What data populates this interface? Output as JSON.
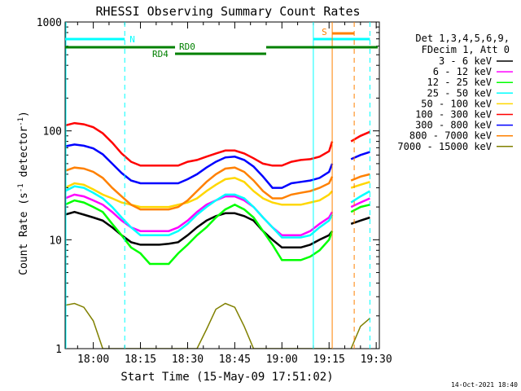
{
  "chart_data": {
    "type": "line",
    "title": "RHESSI Observing Summary Count Rates",
    "xlabel": "Start Time (15-May-09 17:51:02)",
    "ylabel_main": "Count Rate (s",
    "ylabel_sup1": "-1",
    "ylabel_mid": " detector",
    "ylabel_sup2": "-1",
    "ylabel_end": ")",
    "y_scale": "log",
    "ylim": [
      1,
      1000
    ],
    "xlim": [
      "17:51:02",
      "19:31:00"
    ],
    "x_ticks": [
      "18:00",
      "18:15",
      "18:30",
      "18:45",
      "19:00",
      "19:15",
      "19:30"
    ],
    "y_ticks": [
      "1",
      "10",
      "100",
      "1000"
    ],
    "legend_header": [
      "Det 1,3,4,5,6,9,",
      "FDecim 1, Att 0"
    ],
    "timestamp": "14-Oct-2021 18:40",
    "annotations": {
      "night": {
        "label": "N",
        "color": "#00ffff",
        "start": "17:51:02",
        "end": "18:10:00"
      },
      "night2": {
        "start": "19:10:00",
        "end": "19:28:00"
      },
      "saa": {
        "label": "S",
        "color": "#ff8000",
        "start": "19:16:00",
        "end": "19:23:00"
      },
      "rd0": {
        "label": "RD0",
        "color": "#008000"
      },
      "rd4": {
        "label": "RD4",
        "color": "#008000"
      }
    },
    "gaps": [
      [
        "19:17:00",
        "19:21:30"
      ]
    ],
    "x": [
      "17:51",
      "17:54",
      "17:57",
      "18:00",
      "18:03",
      "18:06",
      "18:09",
      "18:12",
      "18:15",
      "18:18",
      "18:21",
      "18:24",
      "18:27",
      "18:30",
      "18:33",
      "18:36",
      "18:39",
      "18:42",
      "18:45",
      "18:48",
      "18:51",
      "18:54",
      "18:57",
      "19:00",
      "19:03",
      "19:06",
      "19:09",
      "19:12",
      "19:15",
      "19:16",
      "19:22",
      "19:25",
      "19:28"
    ],
    "series": [
      {
        "name": "3 - 6 keV",
        "color": "#000000",
        "values": [
          17,
          18,
          17,
          16,
          15,
          13,
          11,
          9.5,
          9.0,
          9.0,
          9.0,
          9.2,
          9.5,
          11,
          13,
          15,
          16.5,
          17.5,
          17.5,
          16.5,
          15,
          12,
          10,
          8.5,
          8.5,
          8.5,
          9.0,
          10,
          11,
          12,
          14,
          15,
          16
        ]
      },
      {
        "name": "6 - 12 keV",
        "color": "#ff00ff",
        "values": [
          24,
          26,
          25,
          23,
          21,
          18,
          15,
          13,
          12,
          12,
          12,
          12,
          13,
          15,
          18,
          21,
          23,
          25,
          25,
          23,
          20,
          16,
          13,
          11,
          11,
          11,
          12,
          14,
          16,
          18,
          20,
          22,
          24
        ]
      },
      {
        "name": "12 - 25 keV",
        "color": "#00ff00",
        "values": [
          21,
          23,
          22,
          20,
          18,
          14,
          11,
          8.5,
          7.5,
          6.0,
          6.0,
          6.0,
          7.5,
          9,
          11,
          13,
          16,
          19,
          21,
          19,
          16,
          12,
          9,
          6.5,
          6.5,
          6.5,
          7,
          8,
          10,
          12,
          18,
          20,
          21
        ]
      },
      {
        "name": "25 - 50 keV",
        "color": "#00ffff",
        "values": [
          28,
          31,
          30,
          27,
          24,
          20,
          16,
          13,
          11,
          11,
          11,
          11,
          12,
          14,
          17,
          20,
          23,
          26,
          26,
          24,
          20,
          16,
          13,
          10.5,
          10.5,
          10.5,
          11,
          13,
          15,
          17,
          22,
          25,
          28
        ]
      },
      {
        "name": "50 - 100 keV",
        "color": "#ffd700",
        "values": [
          30,
          33,
          32,
          29,
          26,
          24,
          22,
          21,
          20,
          20,
          20,
          20,
          21,
          22,
          24,
          28,
          32,
          36,
          37,
          34,
          28,
          24,
          22,
          21,
          21,
          21,
          22,
          23,
          26,
          28,
          30,
          32,
          34
        ]
      },
      {
        "name": "100 - 300 keV",
        "color": "#ff0000",
        "values": [
          112,
          118,
          115,
          108,
          95,
          78,
          62,
          52,
          48,
          48,
          48,
          48,
          48,
          52,
          54,
          58,
          62,
          66,
          66,
          62,
          56,
          50,
          48,
          48,
          52,
          54,
          55,
          58,
          65,
          80,
          80,
          90,
          98
        ]
      },
      {
        "name": "300 - 800 keV",
        "color": "#0000ff",
        "values": [
          72,
          75,
          73,
          69,
          61,
          50,
          41,
          35,
          33,
          33,
          33,
          33,
          33,
          36,
          40,
          46,
          52,
          57,
          58,
          54,
          47,
          38,
          30,
          30,
          33,
          34,
          35,
          37,
          42,
          50,
          55,
          60,
          64
        ]
      },
      {
        "name": "800 - 7000 keV",
        "color": "#ff8000",
        "values": [
          43,
          46,
          45,
          42,
          37,
          30,
          25,
          21,
          19,
          19,
          19,
          19,
          20,
          23,
          28,
          34,
          40,
          45,
          46,
          42,
          35,
          28,
          24,
          24,
          26,
          27,
          28,
          30,
          33,
          38,
          35,
          38,
          40
        ]
      },
      {
        "name": "7000 - 15000 keV",
        "color": "#808000",
        "values": [
          2.5,
          2.6,
          2.4,
          1.8,
          1.0,
          1.0,
          1.0,
          1.0,
          1.0,
          1.0,
          1.0,
          1.0,
          1.0,
          1.0,
          1.0,
          1.5,
          2.3,
          2.6,
          2.4,
          1.6,
          1.0,
          1.0,
          1.0,
          1.0,
          1.0,
          1.0,
          1.0,
          1.0,
          1.0,
          1.0,
          1.0,
          1.6,
          1.9
        ]
      }
    ]
  }
}
